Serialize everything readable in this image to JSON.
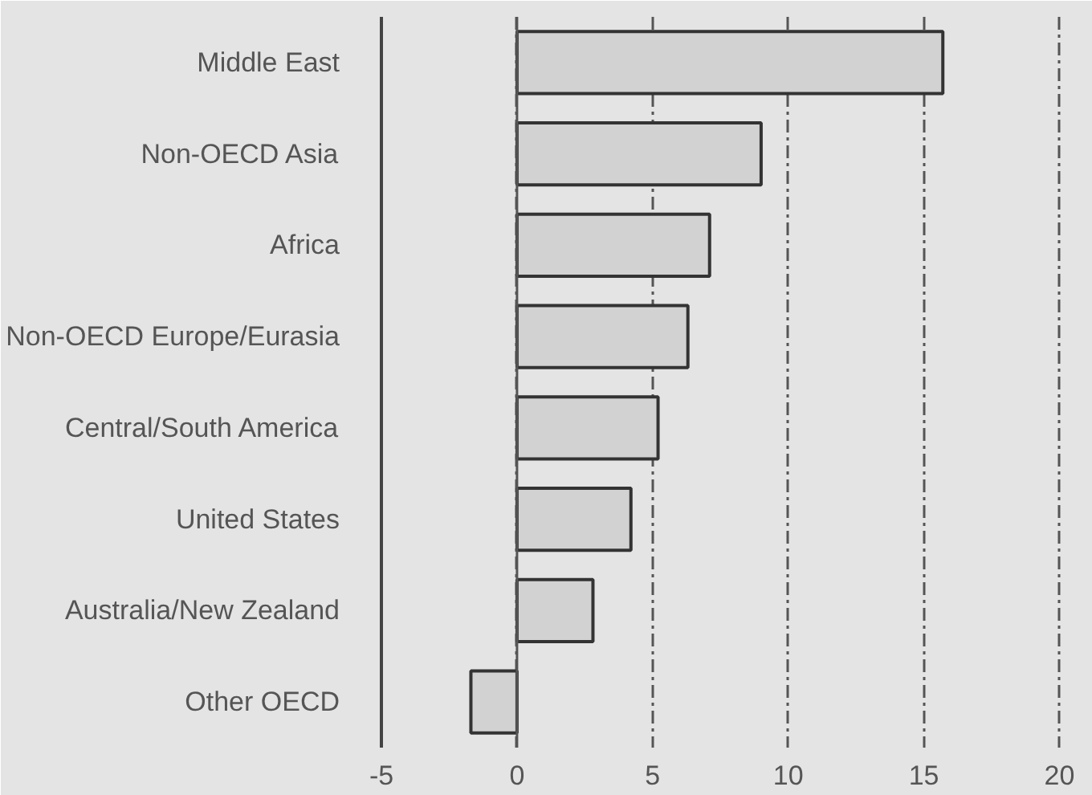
{
  "chart_data": {
    "type": "bar",
    "orientation": "horizontal",
    "categories": [
      "Middle East",
      "Non-OECD Asia",
      "Africa",
      "Non-OECD Europe/Eurasia",
      "Central/South America",
      "United States",
      "Australia/New Zealand",
      "Other OECD"
    ],
    "values": [
      15.7,
      9.0,
      7.1,
      6.3,
      5.2,
      4.2,
      2.8,
      -1.7
    ],
    "color": "#d2d2d2",
    "xlim": [
      -5,
      20.4
    ],
    "xticks": [
      -5,
      0,
      5,
      10,
      15,
      20
    ],
    "grid": "x",
    "line_style": "dashed",
    "ref_lines": [
      {
        "axis": "x",
        "value": 0,
        "label": null
      }
    ]
  }
}
